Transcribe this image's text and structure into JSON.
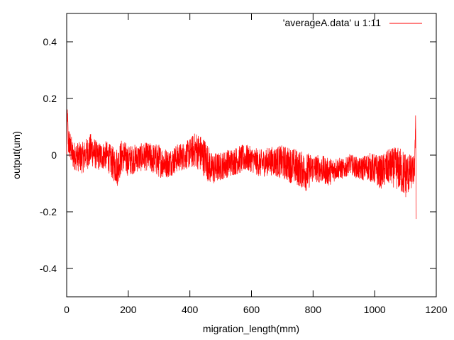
{
  "chart_data": {
    "type": "line",
    "title": "",
    "xlabel": "migration_length(mm)",
    "ylabel": "output(um)",
    "xlim": [
      0,
      1200
    ],
    "ylim": [
      -0.5,
      0.5
    ],
    "x_ticks": [
      0,
      200,
      400,
      600,
      800,
      1000,
      1200
    ],
    "y_ticks": [
      -0.4,
      -0.2,
      0,
      0.2,
      0.4
    ],
    "x_tick_labels": [
      "0",
      "200",
      "400",
      "600",
      "800",
      "1000",
      "1200"
    ],
    "y_tick_labels": [
      "-0.4",
      "-0.2",
      "0",
      "0.2",
      "0.4"
    ],
    "grid": false,
    "legend_position": "top-right",
    "series": [
      {
        "name": "'averageA.data' u 1:11",
        "color": "#ff0000",
        "x": [
          0,
          2,
          5,
          20,
          50,
          80,
          100,
          130,
          150,
          165,
          180,
          200,
          230,
          260,
          300,
          330,
          360,
          390,
          420,
          450,
          470,
          500,
          520,
          550,
          580,
          600,
          630,
          660,
          700,
          740,
          760,
          780,
          800,
          830,
          850,
          880,
          900,
          920,
          950,
          980,
          1000,
          1020,
          1050,
          1080,
          1100,
          1120,
          1130,
          1133,
          1135
        ],
        "y": [
          0.0,
          0.16,
          0.05,
          0.0,
          -0.01,
          0.02,
          -0.005,
          0.0,
          -0.03,
          -0.04,
          0.0,
          -0.02,
          -0.01,
          -0.005,
          -0.02,
          -0.03,
          -0.01,
          0.0,
          0.02,
          -0.01,
          -0.05,
          -0.04,
          -0.03,
          -0.02,
          -0.01,
          -0.015,
          -0.03,
          -0.02,
          -0.025,
          -0.04,
          -0.05,
          -0.06,
          -0.045,
          -0.05,
          -0.06,
          -0.045,
          -0.05,
          -0.03,
          -0.05,
          -0.04,
          -0.05,
          -0.06,
          -0.04,
          -0.05,
          -0.07,
          -0.06,
          -0.05,
          0.15,
          -0.22
        ],
        "envelope_amplitude": [
          0.01,
          0.02,
          0.06,
          0.05,
          0.055,
          0.06,
          0.05,
          0.05,
          0.06,
          0.07,
          0.06,
          0.055,
          0.05,
          0.05,
          0.06,
          0.05,
          0.05,
          0.05,
          0.065,
          0.07,
          0.06,
          0.05,
          0.05,
          0.05,
          0.05,
          0.045,
          0.05,
          0.05,
          0.06,
          0.065,
          0.065,
          0.07,
          0.05,
          0.05,
          0.05,
          0.04,
          0.035,
          0.035,
          0.04,
          0.05,
          0.055,
          0.06,
          0.065,
          0.08,
          0.085,
          0.06,
          0.05,
          0.02,
          0.02
        ]
      }
    ]
  }
}
